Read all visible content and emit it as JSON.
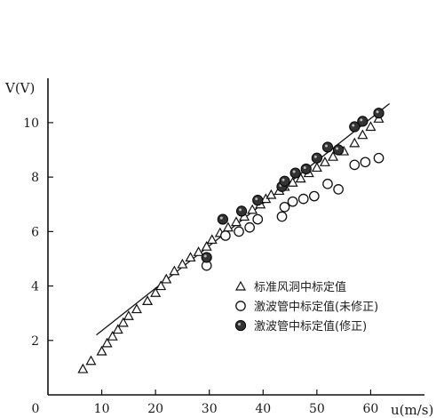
{
  "chart_data": {
    "type": "scatter",
    "title": "",
    "xlabel": "u(m/s)",
    "ylabel": "V(V)",
    "xlim": [
      0,
      70
    ],
    "ylim": [
      0,
      11.5
    ],
    "x_ticks": [
      {
        "value": 0,
        "label": "0"
      },
      {
        "value": 10,
        "label": "10"
      },
      {
        "value": 20,
        "label": "20"
      },
      {
        "value": 30,
        "label": "30"
      },
      {
        "value": 40,
        "label": "40"
      },
      {
        "value": 50,
        "label": "50"
      },
      {
        "value": 60,
        "label": "60"
      }
    ],
    "y_ticks": [
      {
        "value": 2,
        "label": "2"
      },
      {
        "value": 4,
        "label": "4"
      },
      {
        "value": 6,
        "label": "6"
      },
      {
        "value": 8,
        "label": "8"
      },
      {
        "value": 10,
        "label": "10"
      }
    ],
    "grid": false,
    "legend_position": "bottom-right",
    "series": [
      {
        "name": "标准风洞中标定值",
        "marker": "open-triangle",
        "color": "#111111",
        "points": [
          [
            6.5,
            0.95
          ],
          [
            8,
            1.25
          ],
          [
            10,
            1.6
          ],
          [
            11,
            1.9
          ],
          [
            12,
            2.15
          ],
          [
            13,
            2.4
          ],
          [
            14,
            2.65
          ],
          [
            15,
            2.9
          ],
          [
            16.5,
            3.15
          ],
          [
            18.5,
            3.45
          ],
          [
            20,
            3.75
          ],
          [
            21,
            4.0
          ],
          [
            22,
            4.25
          ],
          [
            23.5,
            4.55
          ],
          [
            25,
            4.8
          ],
          [
            26.5,
            5.05
          ],
          [
            28,
            5.25
          ],
          [
            29.5,
            5.45
          ],
          [
            30.5,
            5.7
          ],
          [
            32,
            5.95
          ],
          [
            33.5,
            6.15
          ],
          [
            35,
            6.35
          ],
          [
            36.5,
            6.55
          ],
          [
            38,
            6.8
          ],
          [
            39.5,
            7.0
          ],
          [
            40.5,
            7.2
          ],
          [
            41.5,
            7.35
          ],
          [
            43,
            7.5
          ],
          [
            44,
            7.65
          ],
          [
            45.5,
            7.8
          ],
          [
            47,
            7.95
          ],
          [
            48.5,
            8.15
          ],
          [
            50,
            8.35
          ],
          [
            51.5,
            8.55
          ],
          [
            53,
            8.75
          ],
          [
            55,
            8.95
          ],
          [
            57,
            9.25
          ],
          [
            58.5,
            9.55
          ],
          [
            60,
            9.85
          ],
          [
            61.5,
            10.15
          ]
        ]
      },
      {
        "name": "激波管中标定值(未修正)",
        "marker": "open-circle",
        "color": "#111111",
        "points": [
          [
            29.5,
            4.75
          ],
          [
            33,
            5.85
          ],
          [
            35.5,
            6.0
          ],
          [
            37.5,
            6.15
          ],
          [
            39,
            6.45
          ],
          [
            43.5,
            6.55
          ],
          [
            44,
            6.9
          ],
          [
            45.5,
            7.1
          ],
          [
            47.5,
            7.2
          ],
          [
            49.5,
            7.3
          ],
          [
            52,
            7.75
          ],
          [
            54,
            7.55
          ],
          [
            57,
            8.45
          ],
          [
            59,
            8.55
          ],
          [
            61.5,
            8.7
          ]
        ]
      },
      {
        "name": "激波管中标定值(修正)",
        "marker": "filled-circle",
        "color": "#333333",
        "points": [
          [
            29.5,
            5.05
          ],
          [
            32.5,
            6.45
          ],
          [
            36,
            6.75
          ],
          [
            39,
            7.15
          ],
          [
            43.5,
            7.65
          ],
          [
            44,
            7.85
          ],
          [
            46,
            8.15
          ],
          [
            48,
            8.3
          ],
          [
            50,
            8.7
          ],
          [
            52,
            9.1
          ],
          [
            54,
            9.0
          ],
          [
            57,
            9.85
          ],
          [
            58.5,
            10.05
          ],
          [
            61.5,
            10.35
          ]
        ]
      }
    ],
    "fit_line": {
      "x": [
        9,
        63.5
      ],
      "y": [
        2.2,
        10.7
      ]
    }
  }
}
